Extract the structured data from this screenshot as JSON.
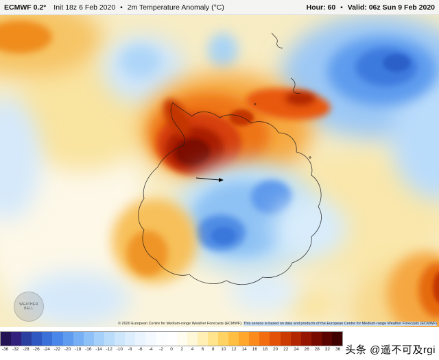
{
  "header": {
    "model": "ECMWF 0.2°",
    "init": "Init 18z 6 Feb 2020",
    "bullet": "•",
    "product": "2m Temperature Anomaly (°C)",
    "hour_label": "Hour:",
    "hour_value": "60",
    "valid_label": "Valid:",
    "valid_value": "06z Sun 9 Feb 2020"
  },
  "map": {
    "logo_line1": "WEATHER",
    "logo_line2": "BELL",
    "copyright_part1": "© 2020 European Centre for Medium-range Weather Forecasts (ECMWF). ",
    "copyright_part2": "This service is based on data and products of the European Centre for Medium-range Weather Forecasts (ECMWF)"
  },
  "colorbar": {
    "unit": "°C",
    "labels": [
      "-36",
      "-32",
      "-28",
      "-26",
      "-24",
      "-22",
      "-20",
      "-18",
      "-16",
      "-14",
      "-12",
      "-10",
      "-8",
      "-6",
      "-4",
      "-2",
      "0",
      "2",
      "4",
      "6",
      "8",
      "10",
      "12",
      "14",
      "16",
      "18",
      "20",
      "22",
      "24",
      "26",
      "28",
      "32",
      "36"
    ],
    "colors": [
      "#241354",
      "#33207c",
      "#2b3f9e",
      "#2f58c0",
      "#3a70d8",
      "#4a87e8",
      "#5f9cf0",
      "#76aff4",
      "#8ec1f7",
      "#a5d0fa",
      "#badcfb",
      "#cde6fc",
      "#dceefd",
      "#e9f4fe",
      "#f3f9fe",
      "#fbfdff",
      "#ffffff",
      "#fffdf0",
      "#fff8d8",
      "#ffefb5",
      "#ffe38d",
      "#ffd363",
      "#ffbf42",
      "#ffa72c",
      "#fb8b1c",
      "#f26d10",
      "#e25107",
      "#cc3a03",
      "#b22702",
      "#951701",
      "#770b00",
      "#590400",
      "#3e0100"
    ]
  },
  "watermark": "头条 @遥不可及rgi",
  "map_data": {
    "type": "temperature-anomaly-map",
    "projection": "south-polar-stereographic",
    "unit": "°C",
    "scale_range": [
      -36,
      36
    ],
    "features": [
      {
        "name": "strong-warm-anomaly",
        "location": "Antarctic Peninsula / West Antarctica",
        "approx_value": "+14 to +26"
      },
      {
        "name": "cold-anomaly",
        "location": "East Antarctic interior plateau",
        "approx_value": "-8 to -18"
      },
      {
        "name": "cold-anomaly",
        "location": "South Atlantic ocean (top right)",
        "approx_value": "-10 to -22"
      },
      {
        "name": "warm-anomaly",
        "location": "ocean at bottom-right edge",
        "approx_value": "+8 to +20"
      },
      {
        "name": "warm-anomaly",
        "location": "ocean at top-left corner",
        "approx_value": "+6 to +12"
      },
      {
        "name": "warm-anomaly",
        "location": "ocean south-west of continent",
        "approx_value": "+4 to +10"
      }
    ]
  }
}
